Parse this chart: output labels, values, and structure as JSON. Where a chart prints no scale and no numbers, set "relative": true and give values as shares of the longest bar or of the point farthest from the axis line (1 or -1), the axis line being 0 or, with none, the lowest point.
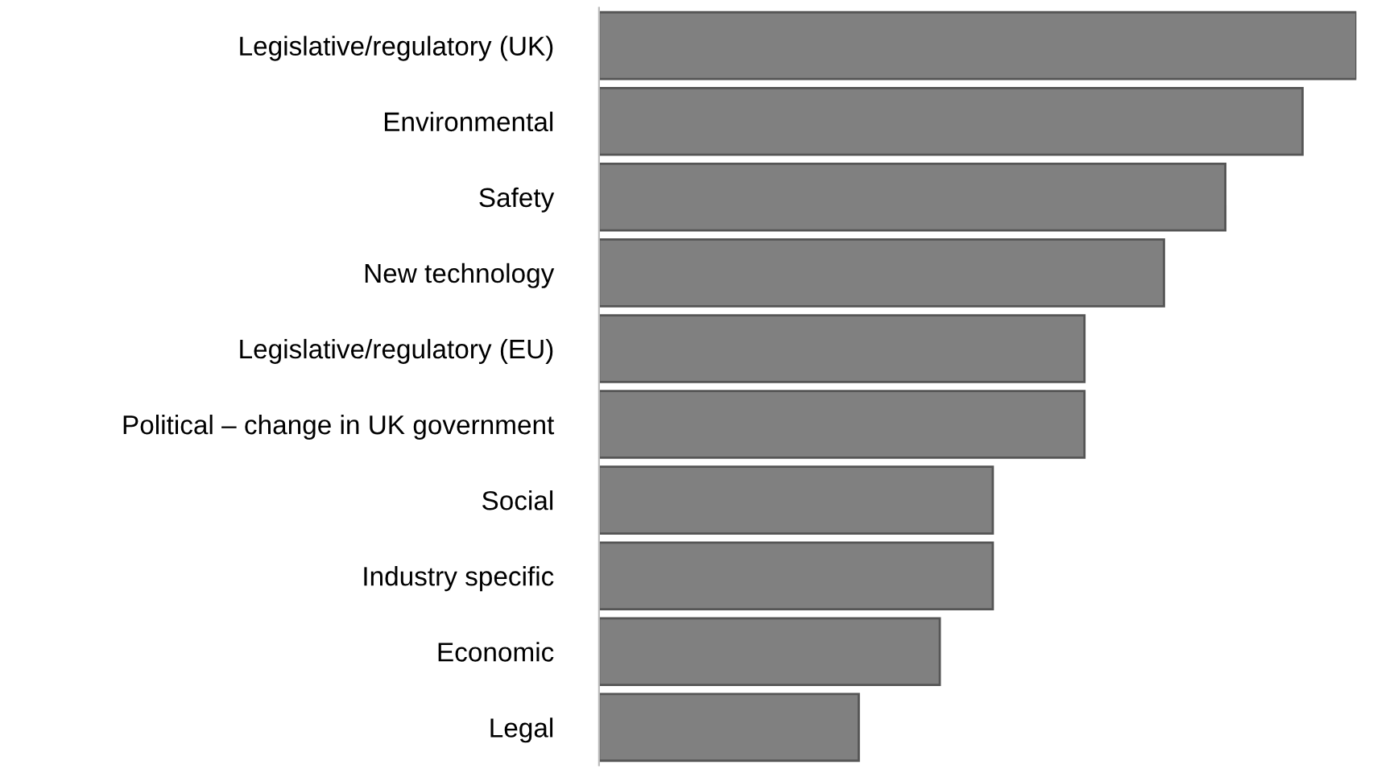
{
  "chart_data": {
    "type": "bar",
    "orientation": "horizontal",
    "relative": true,
    "categories": [
      "Legislative/regulatory (UK)",
      "Environmental",
      "Safety",
      "New technology",
      "Legislative/regulatory (EU)",
      "Political – change in UK government",
      "Social",
      "Industry specific",
      "Economic",
      "Legal"
    ],
    "values": [
      1,
      0.929,
      0.827,
      0.746,
      0.641,
      0.641,
      0.52,
      0.52,
      0.45,
      0.343
    ],
    "color": "#808080",
    "grid": false,
    "legend": false
  }
}
